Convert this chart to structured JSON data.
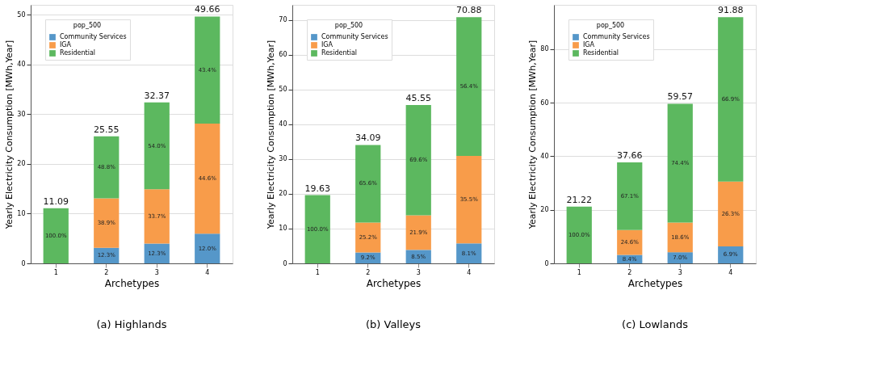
{
  "chart_data": [
    {
      "type": "bar",
      "stacked": true,
      "xlabel": "Archetypes",
      "ylabel": "Yearly Electricity Consumption [MWh,Year]",
      "legend_title": "pop_500",
      "legend": "top left",
      "grid": "y",
      "categories": [
        "1",
        "2",
        "3",
        "4"
      ],
      "ylim": [
        0,
        52
      ],
      "yticks": [
        0,
        10,
        20,
        30,
        40,
        50
      ],
      "totals": [
        "11.09",
        "25.55",
        "32.37",
        "49.66"
      ],
      "annotations": [
        "(a) Highlands",
        "12.3%",
        "12.3%",
        "12.0%",
        "38.9%",
        "33.7%",
        "44.6%",
        "100.0%",
        "48.8%",
        "54.0%",
        "43.4%"
      ],
      "series": [
        {
          "name": "Community Services",
          "color": "#5597c9",
          "values": [
            null,
            3.14,
            3.98,
            5.96
          ]
        },
        {
          "name": "IGA",
          "color": "#f89c4a",
          "values": [
            null,
            9.94,
            10.91,
            22.15
          ]
        },
        {
          "name": "Residential",
          "color": "#5cb85f",
          "values": [
            11.09,
            12.47,
            17.48,
            21.55
          ]
        }
      ]
    },
    {
      "type": "bar",
      "stacked": true,
      "xlabel": "Archetypes",
      "ylabel": "Yearly Electricity Consumption [MWh,Year]",
      "legend_title": "pop_500",
      "legend": "top left",
      "grid": "y",
      "categories": [
        "1",
        "2",
        "3",
        "4"
      ],
      "ylim": [
        0,
        74.4
      ],
      "yticks": [
        0,
        10,
        20,
        30,
        40,
        50,
        60,
        70
      ],
      "totals": [
        "19.63",
        "34.09",
        "45.55",
        "70.88"
      ],
      "annotations": [
        "(b) Valleys",
        "9.2%",
        "8.5%",
        "8.1%",
        "25.2%",
        "21.9%",
        "35.5%",
        "100.0%",
        "65.6%",
        "69.6%",
        "56.4%"
      ],
      "series": [
        {
          "name": "Community Services",
          "color": "#5597c9",
          "values": [
            null,
            3.14,
            3.87,
            5.74
          ]
        },
        {
          "name": "IGA",
          "color": "#f89c4a",
          "values": [
            null,
            8.59,
            9.98,
            25.16
          ]
        },
        {
          "name": "Residential",
          "color": "#5cb85f",
          "values": [
            19.63,
            22.36,
            31.7,
            39.98
          ]
        }
      ]
    },
    {
      "type": "bar",
      "stacked": true,
      "xlabel": "Archetypes",
      "ylabel": "Yearly Electricity Consumption [MWh,Year]",
      "legend_title": "pop_500",
      "legend": "top left",
      "grid": "y",
      "categories": [
        "1",
        "2",
        "3",
        "4"
      ],
      "ylim": [
        0,
        96.5
      ],
      "yticks": [
        0,
        20,
        40,
        60,
        80
      ],
      "totals": [
        "21.22",
        "37.66",
        "59.57",
        "91.88"
      ],
      "annotations": [
        "(c) Lowlands",
        "8.4%",
        "7.0%",
        "6.9%",
        "24.6%",
        "18.6%",
        "26.3%",
        "100.0%",
        "67.1%",
        "74.4%",
        "66.9%"
      ],
      "series": [
        {
          "name": "Community Services",
          "color": "#5597c9",
          "values": [
            null,
            3.16,
            4.17,
            6.34
          ]
        },
        {
          "name": "IGA",
          "color": "#f89c4a",
          "values": [
            null,
            9.26,
            11.08,
            24.16
          ]
        },
        {
          "name": "Residential",
          "color": "#5cb85f",
          "values": [
            21.22,
            25.24,
            44.32,
            61.38
          ]
        }
      ]
    }
  ]
}
